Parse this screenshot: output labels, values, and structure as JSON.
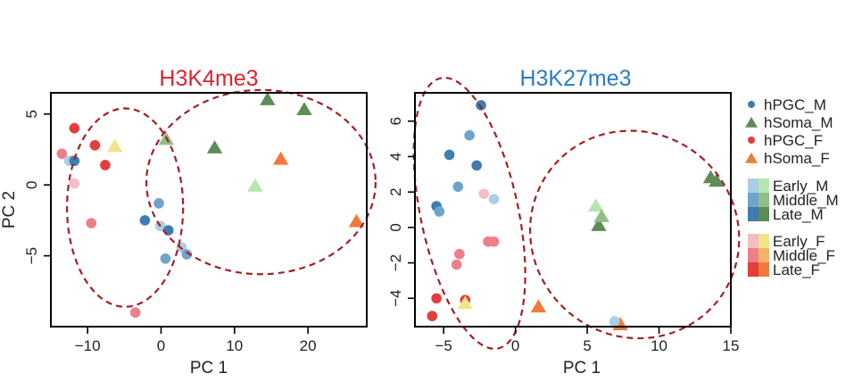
{
  "colors": {
    "title_left": "#d9232f",
    "title_right": "#2b7cbf",
    "ellipse": "#a31f24",
    "hPGC_M": {
      "Early": "#a9cfe4",
      "Middle": "#6fa4cc",
      "Late": "#3f7cb2"
    },
    "hSoma_M": {
      "Early": "#b6e6b0",
      "Middle": "#8fbf86",
      "Late": "#5d8c58"
    },
    "hPGC_F": {
      "Early": "#f6bcc4",
      "Middle": "#ee7f88",
      "Late": "#e43d3d"
    },
    "hSoma_F": {
      "Early": "#efe48a",
      "Middle": "#f3b36a",
      "Late": "#f07a3c"
    }
  },
  "legend": {
    "groups": [
      {
        "label": "hPGC_M",
        "shape": "circle",
        "color": "#3f7cb2"
      },
      {
        "label": "hSoma_M",
        "shape": "triangle",
        "color": "#5d8c58"
      },
      {
        "label": "hPGC_F",
        "shape": "circle",
        "color": "#e43d3d"
      },
      {
        "label": "hSoma_F",
        "shape": "triangle",
        "color": "#f07a3c"
      }
    ],
    "stages_M": [
      {
        "label": "Early_M",
        "colors": [
          "#a9cfe4",
          "#b6e6b0"
        ]
      },
      {
        "label": "Middle_M",
        "colors": [
          "#6fa4cc",
          "#8fbf86"
        ]
      },
      {
        "label": "Late_M",
        "colors": [
          "#3f7cb2",
          "#5d8c58"
        ]
      }
    ],
    "stages_F": [
      {
        "label": "Early_F",
        "colors": [
          "#f6bcc4",
          "#efe48a"
        ]
      },
      {
        "label": "Middle_F",
        "colors": [
          "#ee7f88",
          "#f3b36a"
        ]
      },
      {
        "label": "Late_F",
        "colors": [
          "#e43d3d",
          "#f07a3c"
        ]
      }
    ]
  },
  "chart_data": [
    {
      "type": "scatter",
      "title": "H3K4me3",
      "xlabel": "PC 1",
      "ylabel": "PC 2",
      "xlim": [
        -15,
        28
      ],
      "ylim": [
        -10,
        6.5
      ],
      "xticks": [
        -10,
        0,
        10,
        20
      ],
      "yticks": [
        -5,
        0,
        5
      ],
      "xtick_labels": [
        "−10",
        "0",
        "10",
        "20"
      ],
      "ytick_labels": [
        "−5",
        "0",
        "5"
      ],
      "grid": false,
      "points": [
        {
          "x": -11.8,
          "y": 4.0,
          "group": "hPGC_F",
          "stage": "Late",
          "shape": "circle"
        },
        {
          "x": -9.0,
          "y": 2.8,
          "group": "hPGC_F",
          "stage": "Late",
          "shape": "circle"
        },
        {
          "x": -7.6,
          "y": 1.4,
          "group": "hPGC_F",
          "stage": "Late",
          "shape": "circle"
        },
        {
          "x": -13.5,
          "y": 2.2,
          "group": "hPGC_F",
          "stage": "Middle",
          "shape": "circle"
        },
        {
          "x": -12.5,
          "y": 1.7,
          "group": "hPGC_M",
          "stage": "Early",
          "shape": "circle"
        },
        {
          "x": -11.8,
          "y": 1.7,
          "group": "hPGC_M",
          "stage": "Late",
          "shape": "circle"
        },
        {
          "x": -11.8,
          "y": 0.1,
          "group": "hPGC_F",
          "stage": "Early",
          "shape": "circle"
        },
        {
          "x": -9.5,
          "y": -2.7,
          "group": "hPGC_F",
          "stage": "Middle",
          "shape": "circle"
        },
        {
          "x": -3.5,
          "y": -9.0,
          "group": "hPGC_F",
          "stage": "Middle",
          "shape": "circle"
        },
        {
          "x": -0.3,
          "y": -1.3,
          "group": "hPGC_M",
          "stage": "Middle",
          "shape": "circle"
        },
        {
          "x": -2.2,
          "y": -2.5,
          "group": "hPGC_M",
          "stage": "Late",
          "shape": "circle"
        },
        {
          "x": -0.1,
          "y": -2.9,
          "group": "hPGC_M",
          "stage": "Early",
          "shape": "circle"
        },
        {
          "x": 1.0,
          "y": -3.2,
          "group": "hPGC_M",
          "stage": "Late",
          "shape": "circle"
        },
        {
          "x": 2.8,
          "y": -4.4,
          "group": "hPGC_M",
          "stage": "Early",
          "shape": "circle"
        },
        {
          "x": 0.6,
          "y": -5.2,
          "group": "hPGC_M",
          "stage": "Middle",
          "shape": "circle"
        },
        {
          "x": 3.5,
          "y": -4.9,
          "group": "hPGC_M",
          "stage": "Middle",
          "shape": "circle"
        },
        {
          "x": -6.3,
          "y": 2.7,
          "group": "hSoma_F",
          "stage": "Early",
          "shape": "triangle"
        },
        {
          "x": 0.7,
          "y": 3.2,
          "group": "hSoma_M",
          "stage": "Middle",
          "shape": "triangle"
        },
        {
          "x": 7.3,
          "y": 2.6,
          "group": "hSoma_M",
          "stage": "Late",
          "shape": "triangle"
        },
        {
          "x": 14.5,
          "y": 6.0,
          "group": "hSoma_M",
          "stage": "Late",
          "shape": "triangle"
        },
        {
          "x": 19.5,
          "y": 5.3,
          "group": "hSoma_M",
          "stage": "Late",
          "shape": "triangle"
        },
        {
          "x": 12.8,
          "y": -0.1,
          "group": "hSoma_M",
          "stage": "Early",
          "shape": "triangle"
        },
        {
          "x": 16.3,
          "y": 1.8,
          "group": "hSoma_F",
          "stage": "Late",
          "shape": "triangle"
        },
        {
          "x": 26.6,
          "y": -2.6,
          "group": "hSoma_F",
          "stage": "Late",
          "shape": "triangle"
        }
      ],
      "ellipses": [
        {
          "cx": -4.9,
          "cy": -1.6,
          "rx": 7.9,
          "ry": 7.0,
          "angle_deg": 0,
          "dashed": true
        },
        {
          "cx": 13.6,
          "cy": 0.2,
          "rx": 15.6,
          "ry": 6.5,
          "angle_deg": 0,
          "dashed": true
        }
      ]
    },
    {
      "type": "scatter",
      "title": "H3K27me3",
      "xlabel": "PC 1",
      "ylabel": "",
      "xlim": [
        -7,
        15
      ],
      "ylim": [
        -5.6,
        7.6
      ],
      "xticks": [
        -5,
        0,
        5,
        10,
        15
      ],
      "yticks": [
        -4,
        -2,
        0,
        2,
        4,
        6
      ],
      "xtick_labels": [
        "−5",
        "0",
        "5",
        "10",
        "15"
      ],
      "ytick_labels": [
        "−4",
        "−2",
        "0",
        "2",
        "4",
        "6"
      ],
      "grid": false,
      "points": [
        {
          "x": -2.4,
          "y": 6.9,
          "group": "hPGC_M",
          "stage": "Late",
          "shape": "circle"
        },
        {
          "x": -3.2,
          "y": 5.2,
          "group": "hPGC_M",
          "stage": "Middle",
          "shape": "circle"
        },
        {
          "x": -4.6,
          "y": 4.1,
          "group": "hPGC_M",
          "stage": "Late",
          "shape": "circle"
        },
        {
          "x": -2.7,
          "y": 3.5,
          "group": "hPGC_M",
          "stage": "Late",
          "shape": "circle"
        },
        {
          "x": -4.0,
          "y": 2.3,
          "group": "hPGC_M",
          "stage": "Middle",
          "shape": "circle"
        },
        {
          "x": -2.2,
          "y": 1.9,
          "group": "hPGC_F",
          "stage": "Early",
          "shape": "circle"
        },
        {
          "x": -1.5,
          "y": 1.6,
          "group": "hPGC_M",
          "stage": "Early",
          "shape": "circle"
        },
        {
          "x": -5.5,
          "y": 1.2,
          "group": "hPGC_M",
          "stage": "Late",
          "shape": "circle"
        },
        {
          "x": -5.3,
          "y": 0.9,
          "group": "hPGC_M",
          "stage": "Middle",
          "shape": "circle"
        },
        {
          "x": -1.9,
          "y": -0.8,
          "group": "hPGC_F",
          "stage": "Middle",
          "shape": "circle"
        },
        {
          "x": -1.5,
          "y": -0.8,
          "group": "hPGC_F",
          "stage": "Middle",
          "shape": "circle"
        },
        {
          "x": -3.9,
          "y": -1.5,
          "group": "hPGC_F",
          "stage": "Middle",
          "shape": "circle"
        },
        {
          "x": -4.1,
          "y": -2.1,
          "group": "hPGC_F",
          "stage": "Middle",
          "shape": "circle"
        },
        {
          "x": -5.5,
          "y": -4.0,
          "group": "hPGC_F",
          "stage": "Late",
          "shape": "circle"
        },
        {
          "x": -3.5,
          "y": -4.1,
          "group": "hPGC_F",
          "stage": "Late",
          "shape": "circle"
        },
        {
          "x": -5.8,
          "y": -5.0,
          "group": "hPGC_F",
          "stage": "Late",
          "shape": "circle"
        },
        {
          "x": -3.5,
          "y": -4.3,
          "group": "hSoma_F",
          "stage": "Early",
          "shape": "triangle"
        },
        {
          "x": 5.6,
          "y": 1.2,
          "group": "hSoma_M",
          "stage": "Early",
          "shape": "triangle"
        },
        {
          "x": 5.8,
          "y": 0.1,
          "group": "hSoma_M",
          "stage": "Late",
          "shape": "triangle"
        },
        {
          "x": 6.0,
          "y": 0.6,
          "group": "hSoma_M",
          "stage": "Middle",
          "shape": "triangle"
        },
        {
          "x": 13.6,
          "y": 2.8,
          "group": "hSoma_M",
          "stage": "Late",
          "shape": "triangle"
        },
        {
          "x": 14.0,
          "y": 2.6,
          "group": "hSoma_M",
          "stage": "Late",
          "shape": "triangle"
        },
        {
          "x": 1.6,
          "y": -4.5,
          "group": "hSoma_F",
          "stage": "Late",
          "shape": "triangle"
        },
        {
          "x": 7.3,
          "y": -5.5,
          "group": "hSoma_F",
          "stage": "Late",
          "shape": "triangle"
        },
        {
          "x": 6.9,
          "y": -5.3,
          "group": "hPGC_M",
          "stage": "Early",
          "shape": "circle"
        }
      ],
      "ellipses": [
        {
          "cx": -3.2,
          "cy": 0.8,
          "rx": 3.4,
          "ry": 7.8,
          "angle_deg": -12,
          "dashed": true
        },
        {
          "cx": 8.3,
          "cy": -0.4,
          "rx": 7.1,
          "ry": 6.0,
          "angle_deg": -50,
          "dashed": true
        }
      ]
    }
  ]
}
